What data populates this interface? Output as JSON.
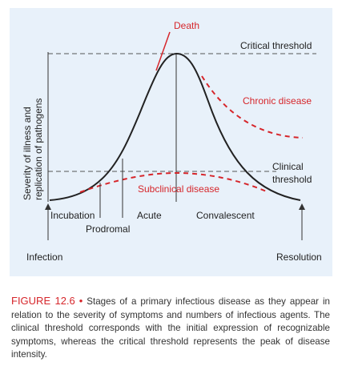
{
  "diagram": {
    "y_axis_label": [
      "Severity of illness and",
      "replication of pathogens"
    ],
    "annotations": {
      "death": "Death",
      "critical_threshold": "Critical threshold",
      "chronic_disease": "Chronic disease",
      "clinical_threshold": [
        "Clinical",
        "threshold"
      ],
      "subclinical_disease": "Subclinical disease"
    },
    "stages": {
      "incubation": "Incubation",
      "prodromal": "Prodromal",
      "acute": "Acute",
      "convalescent": "Convalescent"
    },
    "endpoints": {
      "infection": "Infection",
      "resolution": "Resolution"
    }
  },
  "caption": {
    "label": "FIGURE 12.6",
    "separator": "•",
    "text": "Stages of a primary infectious disease as they appear in relation to the severity of symptoms and numbers of infectious agents. The clinical threshold corresponds with the initial expression of recognizable symptoms, whereas the critical threshold represents the peak of disease intensity."
  }
}
